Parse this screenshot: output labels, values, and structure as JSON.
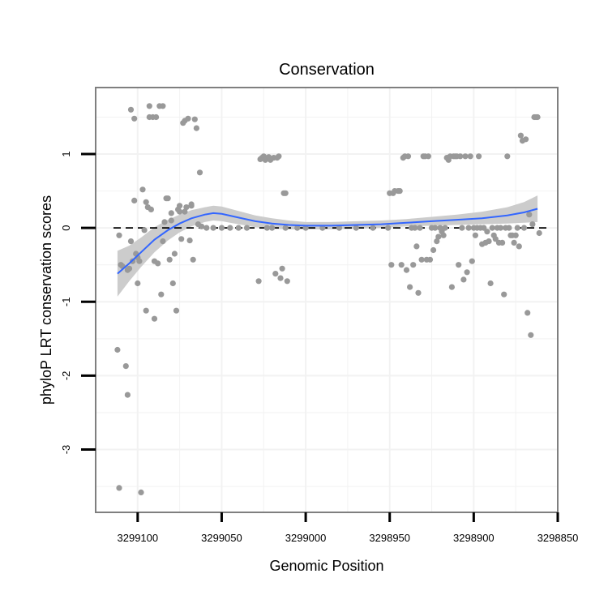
{
  "chart_data": {
    "type": "scatter",
    "title": "Conservation",
    "xlabel": "Genomic Position",
    "ylabel": "phyloP LRT conservation scores",
    "x_reversed": true,
    "xlim": [
      3299125,
      3298850
    ],
    "ylim": [
      -3.85,
      1.9
    ],
    "x_ticks": [
      3299100,
      3299050,
      3299000,
      3298950,
      3298900,
      3298850
    ],
    "x_tick_labels": [
      "3299100",
      "3299050",
      "3299000",
      "3298950",
      "3298900",
      "3298850"
    ],
    "y_ticks": [
      -3,
      -2,
      -1,
      0,
      1
    ],
    "y_tick_labels": [
      "-3",
      "-2",
      "-1",
      "0",
      "1"
    ],
    "grid": true,
    "reference_line": {
      "y": 0,
      "style": "dashed",
      "color": "#000000"
    },
    "colors": {
      "points": "#999999",
      "smooth": "#3366ff",
      "ribbon": "#cccccc",
      "grid": "#f2f2f2",
      "frame": "#7f7f7f"
    },
    "series": [
      {
        "name": "phyloP scores",
        "kind": "points",
        "points": [
          [
            3299112,
            -1.65
          ],
          [
            3299111,
            -3.52
          ],
          [
            3299111,
            -0.1
          ],
          [
            3299110,
            -0.5
          ],
          [
            3299109,
            -0.52
          ],
          [
            3299107,
            -1.87
          ],
          [
            3299106,
            -2.26
          ],
          [
            3299106,
            -0.57
          ],
          [
            3299105,
            -0.55
          ],
          [
            3299104,
            1.6
          ],
          [
            3299104,
            -0.18
          ],
          [
            3299103,
            -0.45
          ],
          [
            3299102,
            1.48
          ],
          [
            3299102,
            0.37
          ],
          [
            3299101,
            -0.35
          ],
          [
            3299100,
            -0.4
          ],
          [
            3299100,
            -0.75
          ],
          [
            3299099,
            -0.45
          ],
          [
            3299098,
            -3.58
          ],
          [
            3299097,
            0.52
          ],
          [
            3299096,
            -0.03
          ],
          [
            3299095,
            -1.12
          ],
          [
            3299095,
            0.35
          ],
          [
            3299094,
            0.28
          ],
          [
            3299093,
            1.65
          ],
          [
            3299093,
            1.5
          ],
          [
            3299092,
            0.25
          ],
          [
            3299091,
            1.5
          ],
          [
            3299090,
            -1.23
          ],
          [
            3299090,
            -0.45
          ],
          [
            3299089,
            1.5
          ],
          [
            3299088,
            -0.48
          ],
          [
            3299087,
            1.65
          ],
          [
            3299086,
            -0.9
          ],
          [
            3299085,
            1.65
          ],
          [
            3299085,
            -0.18
          ],
          [
            3299084,
            0.08
          ],
          [
            3299083,
            0.4
          ],
          [
            3299082,
            0.4
          ],
          [
            3299081,
            -0.43
          ],
          [
            3299080,
            0.2
          ],
          [
            3299080,
            0.1
          ],
          [
            3299079,
            -0.75
          ],
          [
            3299078,
            -0.35
          ],
          [
            3299077,
            -1.12
          ],
          [
            3299076,
            0.25
          ],
          [
            3299075,
            0.3
          ],
          [
            3299075,
            0.22
          ],
          [
            3299074,
            -0.15
          ],
          [
            3299073,
            1.42
          ],
          [
            3299072,
            0.22
          ],
          [
            3299072,
            1.45
          ],
          [
            3299071,
            0.28
          ],
          [
            3299070,
            1.48
          ],
          [
            3299069,
            -0.17
          ],
          [
            3299068,
            0.3
          ],
          [
            3299068,
            0.32
          ],
          [
            3299067,
            -0.43
          ],
          [
            3299066,
            1.47
          ],
          [
            3299065,
            1.35
          ],
          [
            3299064,
            0.05
          ],
          [
            3299063,
            0.75
          ],
          [
            3299062,
            0.02
          ],
          [
            3299059,
            0.0
          ],
          [
            3299055,
            0.0
          ],
          [
            3299050,
            0.0
          ],
          [
            3299045,
            0.0
          ],
          [
            3299040,
            0.0
          ],
          [
            3299035,
            0.0
          ],
          [
            3299028,
            -0.72
          ],
          [
            3299027,
            0.93
          ],
          [
            3299026,
            0.95
          ],
          [
            3299025,
            0.97
          ],
          [
            3299024,
            0.92
          ],
          [
            3299023,
            0.0
          ],
          [
            3299022,
            0.96
          ],
          [
            3299021,
            0.92
          ],
          [
            3299020,
            0.0
          ],
          [
            3299019,
            0.95
          ],
          [
            3299018,
            -0.62
          ],
          [
            3299017,
            0.95
          ],
          [
            3299016,
            0.97
          ],
          [
            3299015,
            -0.68
          ],
          [
            3299014,
            -0.55
          ],
          [
            3299013,
            0.47
          ],
          [
            3299012,
            0.47
          ],
          [
            3299012,
            0.0
          ],
          [
            3299011,
            -0.72
          ],
          [
            3299005,
            0.0
          ],
          [
            3299000,
            0.0
          ],
          [
            3298990,
            0.0
          ],
          [
            3298980,
            0.0
          ],
          [
            3298970,
            0.0
          ],
          [
            3298960,
            0.0
          ],
          [
            3298951,
            0.0
          ],
          [
            3298950,
            0.47
          ],
          [
            3298949,
            -0.5
          ],
          [
            3298948,
            0.47
          ],
          [
            3298947,
            0.5
          ],
          [
            3298945,
            0.5
          ],
          [
            3298944,
            0.5
          ],
          [
            3298943,
            -0.5
          ],
          [
            3298942,
            0.95
          ],
          [
            3298941,
            0.97
          ],
          [
            3298940,
            -0.57
          ],
          [
            3298939,
            0.97
          ],
          [
            3298938,
            -0.8
          ],
          [
            3298937,
            0.0
          ],
          [
            3298936,
            -0.5
          ],
          [
            3298935,
            0.0
          ],
          [
            3298934,
            -0.25
          ],
          [
            3298933,
            -0.88
          ],
          [
            3298932,
            0.0
          ],
          [
            3298931,
            -0.43
          ],
          [
            3298930,
            0.97
          ],
          [
            3298929,
            0.97
          ],
          [
            3298928,
            -0.43
          ],
          [
            3298927,
            0.97
          ],
          [
            3298926,
            -0.43
          ],
          [
            3298925,
            0.0
          ],
          [
            3298924,
            -0.3
          ],
          [
            3298923,
            0.0
          ],
          [
            3298922,
            -0.18
          ],
          [
            3298921,
            -0.12
          ],
          [
            3298920,
            0.0
          ],
          [
            3298919,
            -0.05
          ],
          [
            3298918,
            -0.1
          ],
          [
            3298917,
            0.0
          ],
          [
            3298916,
            0.95
          ],
          [
            3298915,
            0.92
          ],
          [
            3298914,
            0.97
          ],
          [
            3298913,
            -0.8
          ],
          [
            3298912,
            0.97
          ],
          [
            3298911,
            0.97
          ],
          [
            3298910,
            0.97
          ],
          [
            3298909,
            -0.5
          ],
          [
            3298908,
            0.97
          ],
          [
            3298907,
            0.0
          ],
          [
            3298906,
            -0.7
          ],
          [
            3298905,
            0.97
          ],
          [
            3298904,
            -0.6
          ],
          [
            3298903,
            0.0
          ],
          [
            3298902,
            0.97
          ],
          [
            3298901,
            -0.45
          ],
          [
            3298900,
            0.0
          ],
          [
            3298899,
            -0.1
          ],
          [
            3298898,
            0.0
          ],
          [
            3298897,
            0.97
          ],
          [
            3298896,
            0.0
          ],
          [
            3298895,
            -0.22
          ],
          [
            3298894,
            0.0
          ],
          [
            3298893,
            -0.2
          ],
          [
            3298892,
            -0.05
          ],
          [
            3298891,
            -0.18
          ],
          [
            3298890,
            -0.75
          ],
          [
            3298889,
            0.0
          ],
          [
            3298888,
            -0.1
          ],
          [
            3298887,
            -0.15
          ],
          [
            3298886,
            0.0
          ],
          [
            3298885,
            -0.2
          ],
          [
            3298884,
            0.0
          ],
          [
            3298883,
            -0.2
          ],
          [
            3298882,
            -0.9
          ],
          [
            3298881,
            0.0
          ],
          [
            3298880,
            0.97
          ],
          [
            3298879,
            0.0
          ],
          [
            3298878,
            -0.1
          ],
          [
            3298877,
            -0.1
          ],
          [
            3298876,
            -0.2
          ],
          [
            3298875,
            -0.1
          ],
          [
            3298874,
            0.0
          ],
          [
            3298873,
            -0.25
          ],
          [
            3298872,
            1.25
          ],
          [
            3298871,
            1.18
          ],
          [
            3298870,
            0.0
          ],
          [
            3298869,
            1.2
          ],
          [
            3298868,
            -1.15
          ],
          [
            3298867,
            0.18
          ],
          [
            3298866,
            -1.45
          ],
          [
            3298865,
            0.05
          ],
          [
            3298864,
            1.5
          ],
          [
            3298863,
            1.5
          ],
          [
            3298862,
            1.5
          ],
          [
            3298861,
            -0.07
          ]
        ]
      },
      {
        "name": "smooth",
        "kind": "line",
        "x": [
          3299112,
          3299105,
          3299098,
          3299090,
          3299082,
          3299075,
          3299068,
          3299060,
          3299055,
          3299050,
          3299040,
          3299030,
          3299020,
          3299010,
          3299000,
          3298985,
          3298970,
          3298955,
          3298940,
          3298925,
          3298910,
          3298895,
          3298880,
          3298870,
          3298862
        ],
        "y": [
          -0.62,
          -0.48,
          -0.33,
          -0.16,
          -0.03,
          0.06,
          0.13,
          0.18,
          0.2,
          0.19,
          0.14,
          0.09,
          0.06,
          0.04,
          0.03,
          0.03,
          0.04,
          0.05,
          0.07,
          0.09,
          0.11,
          0.13,
          0.17,
          0.21,
          0.26
        ],
        "lower": [
          -0.93,
          -0.72,
          -0.53,
          -0.33,
          -0.17,
          -0.06,
          0.02,
          0.08,
          0.1,
          0.09,
          0.05,
          0.01,
          -0.01,
          -0.02,
          -0.02,
          -0.02,
          -0.01,
          0.0,
          0.02,
          0.03,
          0.04,
          0.05,
          0.06,
          0.07,
          0.08
        ],
        "upper": [
          -0.31,
          -0.24,
          -0.13,
          0.01,
          0.11,
          0.18,
          0.24,
          0.28,
          0.3,
          0.29,
          0.23,
          0.17,
          0.13,
          0.1,
          0.08,
          0.08,
          0.09,
          0.1,
          0.12,
          0.15,
          0.18,
          0.22,
          0.28,
          0.35,
          0.44
        ]
      }
    ]
  }
}
